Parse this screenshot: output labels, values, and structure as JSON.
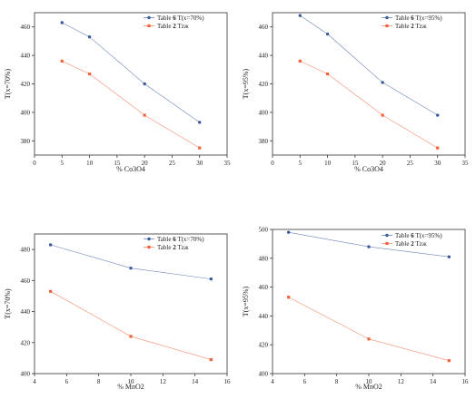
{
  "chart_data": [
    {
      "type": "line",
      "xlabel": "% Co3O4",
      "ylabel": "T(x=70%)",
      "xlim": [
        0,
        35
      ],
      "ylim": [
        370,
        470
      ],
      "xticks": [
        0,
        5,
        10,
        15,
        20,
        25,
        30,
        35
      ],
      "yticks": [
        380,
        400,
        420,
        440,
        460
      ],
      "legend_position": "top-right",
      "series": [
        {
          "legend": {
            "pre": "Table ",
            "bold": "6",
            "post": " T(x=70%)"
          },
          "color": "#3a5a9b",
          "marker": "circle",
          "x": [
            5,
            10,
            20,
            30
          ],
          "y": [
            463,
            453,
            420,
            393
          ]
        },
        {
          "legend": {
            "pre": "Table ",
            "bold": "2",
            "post": " Tzж"
          },
          "color": "#f0623a",
          "marker": "square",
          "x": [
            5,
            10,
            20,
            30
          ],
          "y": [
            436,
            427,
            398,
            375
          ]
        }
      ]
    },
    {
      "type": "line",
      "xlabel": "% Co3O4",
      "ylabel": "T(x=95%)",
      "xlim": [
        0,
        35
      ],
      "ylim": [
        370,
        470
      ],
      "xticks": [
        0,
        5,
        10,
        15,
        20,
        25,
        30,
        35
      ],
      "yticks": [
        380,
        400,
        420,
        440,
        460
      ],
      "legend_position": "top-right",
      "series": [
        {
          "legend": {
            "pre": "Table ",
            "bold": "6",
            "post": " T(x=95%)"
          },
          "color": "#3a5a9b",
          "marker": "circle",
          "x": [
            5,
            10,
            20,
            30
          ],
          "y": [
            468,
            455,
            421,
            398
          ]
        },
        {
          "legend": {
            "pre": "Table ",
            "bold": "2",
            "post": " Tzж"
          },
          "color": "#f0623a",
          "marker": "square",
          "x": [
            5,
            10,
            20,
            30
          ],
          "y": [
            436,
            427,
            398,
            375
          ]
        }
      ]
    },
    {
      "type": "line",
      "xlabel": "% MnO2",
      "ylabel": "T(x=70%)",
      "xlim": [
        4,
        16
      ],
      "ylim": [
        400,
        490
      ],
      "xticks": [
        4,
        6,
        8,
        10,
        12,
        14,
        16
      ],
      "yticks": [
        400,
        420,
        440,
        460,
        480
      ],
      "legend_position": "top-right",
      "series": [
        {
          "legend": {
            "pre": "Table ",
            "bold": "6",
            "post": " T(x=70%)"
          },
          "color": "#3a5a9b",
          "marker": "circle",
          "x": [
            5,
            10,
            15
          ],
          "y": [
            483,
            468,
            461
          ]
        },
        {
          "legend": {
            "pre": "Table ",
            "bold": "2",
            "post": " Tzж"
          },
          "color": "#f0623a",
          "marker": "square",
          "x": [
            5,
            10,
            15
          ],
          "y": [
            453,
            424,
            409
          ]
        }
      ]
    },
    {
      "type": "line",
      "xlabel": "% MnO2",
      "ylabel": "T(x=95%)",
      "xlim": [
        4,
        16
      ],
      "ylim": [
        400,
        500
      ],
      "xticks": [
        4,
        6,
        8,
        10,
        12,
        14,
        16
      ],
      "yticks": [
        400,
        420,
        440,
        460,
        480,
        500
      ],
      "legend_position": "top-right",
      "series": [
        {
          "legend": {
            "pre": "Table ",
            "bold": "6",
            "post": " T(x=95%)"
          },
          "color": "#3a5a9b",
          "marker": "circle",
          "x": [
            5,
            10,
            15
          ],
          "y": [
            498,
            488,
            481
          ]
        },
        {
          "legend": {
            "pre": "Table ",
            "bold": "2",
            "post": " Tzж"
          },
          "color": "#f0623a",
          "marker": "square",
          "x": [
            5,
            10,
            15
          ],
          "y": [
            453,
            424,
            409
          ]
        }
      ]
    }
  ]
}
